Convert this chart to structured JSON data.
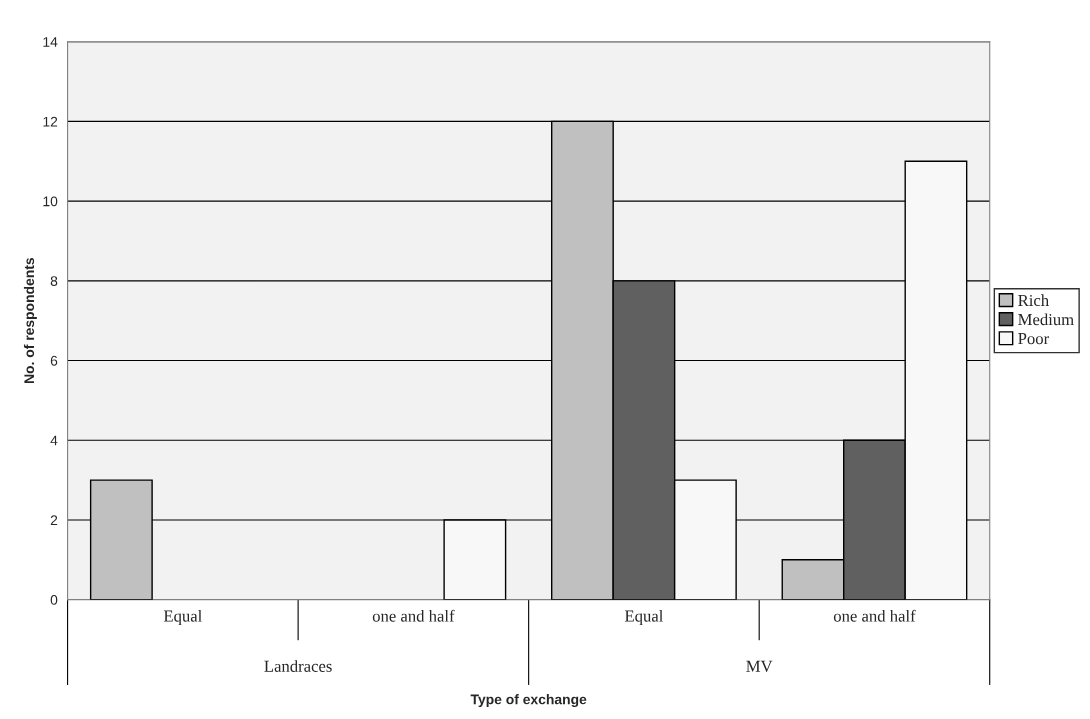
{
  "chart_data": {
    "type": "bar",
    "xlabel": "Type of exchange",
    "ylabel": "No. of respondents",
    "categories": [
      "Equal",
      "one and half",
      "Equal",
      "one and half"
    ],
    "series": [
      {
        "name": "Rich",
        "color": "#c0c0c0",
        "values": [
          3,
          0,
          12,
          1
        ]
      },
      {
        "name": "Medium",
        "color": "#606060",
        "values": [
          0,
          0,
          8,
          4
        ]
      },
      {
        "name": "Poor",
        "color": "#f8f8f8",
        "values": [
          0,
          2,
          3,
          11
        ]
      }
    ],
    "annotations": [
      "Landraces",
      "MV"
    ],
    "ylim": [
      0,
      14
    ],
    "yticks": [
      0,
      2,
      4,
      6,
      8,
      10,
      12,
      14
    ],
    "grid": "y",
    "legend": "right"
  }
}
